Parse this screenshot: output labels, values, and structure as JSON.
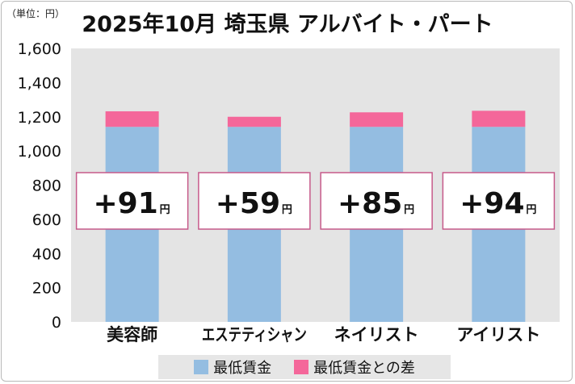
{
  "unit_label": "（単位：円）",
  "title": "2025年10月 埼玉県 アルバイト・パート",
  "chart_data": {
    "type": "bar",
    "stacked": true,
    "categories": [
      "美容師",
      "エステティシャン",
      "ネイリスト",
      "アイリスト"
    ],
    "series": [
      {
        "name": "最低賃金",
        "values": [
          1141,
          1141,
          1141,
          1141
        ],
        "color": "#94bde1"
      },
      {
        "name": "最低賃金との差",
        "values": [
          91,
          59,
          85,
          94
        ],
        "color": "#f4679a"
      }
    ],
    "annotations": [
      "+91",
      "+59",
      "+85",
      "+94"
    ],
    "annotation_unit": "円",
    "yticks": [
      "0",
      "200",
      "400",
      "600",
      "800",
      "1,000",
      "1,200",
      "1,400",
      "1,600"
    ],
    "ylim": [
      0,
      1600
    ],
    "grid": false,
    "legend_position": "bottom"
  }
}
